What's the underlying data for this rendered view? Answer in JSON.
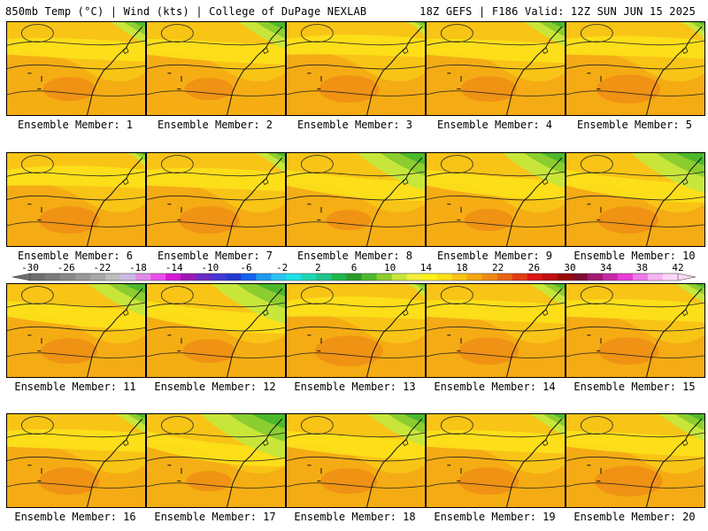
{
  "header": {
    "left": "850mb Temp (°C) | Wind (kts) | College of DuPage NEXLAB",
    "right": "18Z GEFS | F186 Valid: 12Z SUN JUN 15 2025"
  },
  "members": [
    {
      "label": "Ensemble Member: 1",
      "green": 0.25,
      "warm": 0.45
    },
    {
      "label": "Ensemble Member: 2",
      "green": 0.35,
      "warm": 0.4
    },
    {
      "label": "Ensemble Member: 3",
      "green": 0.1,
      "warm": 0.55
    },
    {
      "label": "Ensemble Member: 4",
      "green": 0.3,
      "warm": 0.5
    },
    {
      "label": "Ensemble Member: 5",
      "green": 0.15,
      "warm": 0.6
    },
    {
      "label": "Ensemble Member: 6",
      "green": 0.1,
      "warm": 0.55
    },
    {
      "label": "Ensemble Member: 7",
      "green": 0.2,
      "warm": 0.55
    },
    {
      "label": "Ensemble Member: 8",
      "green": 0.55,
      "warm": 0.35
    },
    {
      "label": "Ensemble Member: 9",
      "green": 0.5,
      "warm": 0.4
    },
    {
      "label": "Ensemble Member: 10",
      "green": 0.6,
      "warm": 0.55
    },
    {
      "label": "Ensemble Member: 11",
      "green": 0.45,
      "warm": 0.5
    },
    {
      "label": "Ensemble Member: 12",
      "green": 0.6,
      "warm": 0.45
    },
    {
      "label": "Ensemble Member: 13",
      "green": 0.1,
      "warm": 0.65
    },
    {
      "label": "Ensemble Member: 14",
      "green": 0.25,
      "warm": 0.55
    },
    {
      "label": "Ensemble Member: 15",
      "green": 0.2,
      "warm": 0.55
    },
    {
      "label": "Ensemble Member: 16",
      "green": 0.2,
      "warm": 0.55
    },
    {
      "label": "Ensemble Member: 17",
      "green": 0.7,
      "warm": 0.35
    },
    {
      "label": "Ensemble Member: 18",
      "green": 0.45,
      "warm": 0.5
    },
    {
      "label": "Ensemble Member: 19",
      "green": 0.25,
      "warm": 0.55
    },
    {
      "label": "Ensemble Member: 20",
      "green": 0.35,
      "warm": 0.65
    }
  ],
  "colorbar": {
    "tick_labels": [
      "-30",
      "-26",
      "-22",
      "-18",
      "-14",
      "-10",
      "-6",
      "-2",
      "2",
      "6",
      "10",
      "14",
      "18",
      "22",
      "26",
      "30",
      "34",
      "38",
      "42"
    ],
    "colors": [
      "#6e6e6e",
      "#7a7a7a",
      "#888888",
      "#979797",
      "#a7a7a7",
      "#bdbdbd",
      "#cfb7e6",
      "#e08ae6",
      "#ea4fea",
      "#d419d4",
      "#9e19b4",
      "#6a2bc3",
      "#4736d6",
      "#233ad2",
      "#1461f0",
      "#1e9bf0",
      "#2cc4f4",
      "#1ee0e6",
      "#1fd6b4",
      "#1fc48c",
      "#1fb44b",
      "#2b9a2b",
      "#4db82c",
      "#8ccd2f",
      "#c8e63a",
      "#f0f03c",
      "#fff21c",
      "#fce11a",
      "#f8c416",
      "#f4a614",
      "#ee8a14",
      "#e86414",
      "#e23c14",
      "#dc1414",
      "#c00e0e",
      "#980a0a",
      "#800a30",
      "#a01a70",
      "#c82aa8",
      "#e83cd4",
      "#f07ae8",
      "#f8b4f2",
      "#fcd8f8"
    ]
  }
}
